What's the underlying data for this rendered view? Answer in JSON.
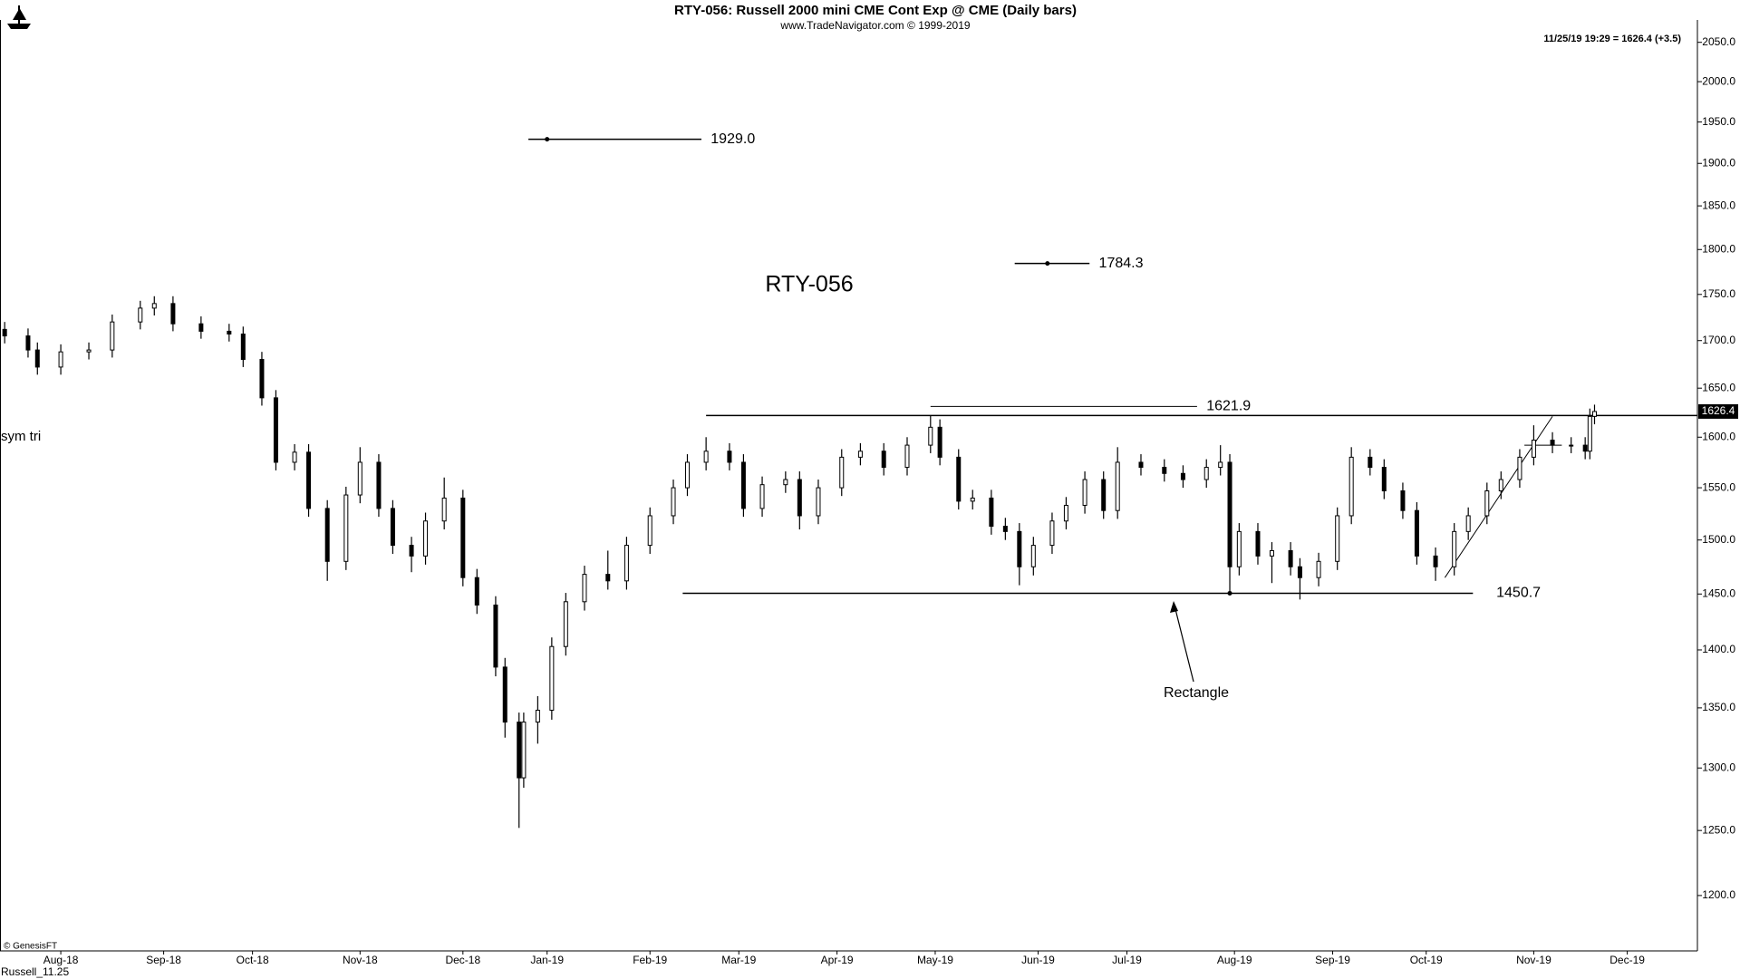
{
  "chart_data": {
    "type": "candlestick",
    "title": "RTY-056:  Russell 2000 mini CME Cont Exp @ CME  (Daily bars)",
    "subtitle": "www.TradeNavigator.com © 1999-2019",
    "header_note": "11/25/19 19:29 = 1626.4 (+3.5)",
    "chart_label": "RTY-056",
    "side_note": "sym tri",
    "pattern_label": "Rectangle",
    "copyright": "© GenesisFT",
    "file_label": "Russell_11.25",
    "last_price_label": "1626.4",
    "log_scale": true,
    "x": [
      0,
      5,
      7,
      12,
      18,
      23,
      29,
      32,
      36,
      42,
      48,
      51,
      55,
      58,
      62,
      65,
      69,
      73,
      76,
      80,
      83,
      87,
      90,
      94,
      98,
      101,
      105,
      107,
      110,
      111,
      114,
      117,
      120,
      124,
      129,
      133,
      138,
      143,
      146,
      150,
      155,
      158,
      162,
      167,
      170,
      174,
      179,
      183,
      188,
      193,
      198,
      200,
      204,
      207,
      211,
      214,
      217,
      220,
      224,
      227,
      231,
      235,
      238,
      243,
      248,
      252,
      257,
      260,
      262,
      264,
      268,
      271,
      275,
      277,
      281,
      285,
      288,
      292,
      295,
      299,
      302,
      306,
      310,
      313,
      317,
      320,
      324,
      327,
      331,
      335,
      338,
      339,
      340
    ],
    "open": [
      1712,
      1705,
      1690,
      1672,
      1688,
      1690,
      1720,
      1735,
      1740,
      1718,
      1710,
      1707,
      1680,
      1640,
      1575,
      1585,
      1530,
      1480,
      1543,
      1575,
      1530,
      1495,
      1485,
      1518,
      1540,
      1465,
      1440,
      1385,
      1338,
      1292,
      1338,
      1348,
      1403,
      1443,
      1468,
      1462,
      1495,
      1523,
      1550,
      1575,
      1586,
      1575,
      1530,
      1553,
      1558,
      1523,
      1550,
      1580,
      1586,
      1570,
      1592,
      1610,
      1580,
      1537,
      1540,
      1513,
      1508,
      1475,
      1495,
      1518,
      1533,
      1558,
      1528,
      1575,
      1570,
      1564,
      1558,
      1570,
      1575,
      1475,
      1508,
      1485,
      1490,
      1475,
      1465,
      1480,
      1523,
      1580,
      1570,
      1547,
      1528,
      1485,
      1475,
      1508,
      1523,
      1547,
      1558,
      1580,
      1597,
      1592,
      1592,
      1586,
      1621
    ],
    "high": [
      1720,
      1713,
      1698,
      1696,
      1698,
      1728,
      1743,
      1748,
      1748,
      1726,
      1718,
      1715,
      1688,
      1648,
      1593,
      1593,
      1538,
      1551,
      1590,
      1583,
      1538,
      1503,
      1526,
      1560,
      1548,
      1473,
      1448,
      1393,
      1346,
      1346,
      1360,
      1411,
      1451,
      1476,
      1490,
      1503,
      1531,
      1558,
      1583,
      1600,
      1594,
      1583,
      1561,
      1566,
      1566,
      1558,
      1588,
      1594,
      1594,
      1600,
      1622,
      1618,
      1588,
      1548,
      1548,
      1521,
      1516,
      1503,
      1526,
      1541,
      1566,
      1566,
      1590,
      1583,
      1578,
      1572,
      1578,
      1592,
      1583,
      1516,
      1516,
      1498,
      1498,
      1483,
      1488,
      1531,
      1590,
      1588,
      1578,
      1555,
      1536,
      1493,
      1516,
      1531,
      1555,
      1566,
      1588,
      1612,
      1605,
      1600,
      1600,
      1629,
      1633
    ],
    "low": [
      1697,
      1682,
      1664,
      1664,
      1680,
      1682,
      1712,
      1727,
      1710,
      1702,
      1699,
      1672,
      1632,
      1567,
      1567,
      1522,
      1462,
      1472,
      1535,
      1522,
      1487,
      1470,
      1477,
      1510,
      1457,
      1432,
      1377,
      1325,
      1252,
      1284,
      1320,
      1340,
      1395,
      1435,
      1454,
      1454,
      1487,
      1515,
      1542,
      1567,
      1567,
      1522,
      1522,
      1545,
      1510,
      1515,
      1542,
      1572,
      1562,
      1562,
      1584,
      1572,
      1529,
      1529,
      1505,
      1500,
      1458,
      1467,
      1487,
      1510,
      1525,
      1520,
      1520,
      1562,
      1556,
      1550,
      1550,
      1562,
      1452,
      1467,
      1477,
      1460,
      1467,
      1445,
      1457,
      1472,
      1515,
      1562,
      1539,
      1520,
      1477,
      1462,
      1467,
      1500,
      1515,
      1539,
      1550,
      1572,
      1584,
      1584,
      1578,
      1578,
      1613
    ],
    "close": [
      1705,
      1690,
      1672,
      1688,
      1690,
      1720,
      1735,
      1740,
      1718,
      1710,
      1707,
      1680,
      1640,
      1575,
      1585,
      1530,
      1480,
      1543,
      1575,
      1530,
      1495,
      1485,
      1518,
      1540,
      1465,
      1440,
      1385,
      1338,
      1292,
      1338,
      1348,
      1403,
      1443,
      1468,
      1462,
      1495,
      1523,
      1550,
      1575,
      1586,
      1575,
      1530,
      1553,
      1558,
      1523,
      1550,
      1580,
      1586,
      1570,
      1592,
      1610,
      1580,
      1537,
      1540,
      1513,
      1508,
      1475,
      1495,
      1518,
      1533,
      1558,
      1528,
      1575,
      1570,
      1564,
      1558,
      1570,
      1575,
      1475,
      1508,
      1485,
      1490,
      1475,
      1465,
      1480,
      1523,
      1580,
      1570,
      1547,
      1528,
      1485,
      1475,
      1508,
      1523,
      1547,
      1558,
      1580,
      1597,
      1592,
      1592,
      1586,
      1621,
      1626
    ],
    "xlim": [
      -1,
      362
    ],
    "xticks": [
      {
        "value": 12,
        "label": "Aug-18"
      },
      {
        "value": 34,
        "label": "Sep-18"
      },
      {
        "value": 53,
        "label": "Oct-18"
      },
      {
        "value": 76,
        "label": "Nov-18"
      },
      {
        "value": 98,
        "label": "Dec-18"
      },
      {
        "value": 116,
        "label": "Jan-19"
      },
      {
        "value": 138,
        "label": "Feb-19"
      },
      {
        "value": 157,
        "label": "Mar-19"
      },
      {
        "value": 178,
        "label": "Apr-19"
      },
      {
        "value": 199,
        "label": "May-19"
      },
      {
        "value": 221,
        "label": "Jun-19"
      },
      {
        "value": 240,
        "label": "Jul-19"
      },
      {
        "value": 263,
        "label": "Aug-19"
      },
      {
        "value": 284,
        "label": "Sep-19"
      },
      {
        "value": 304,
        "label": "Oct-19"
      },
      {
        "value": 327,
        "label": "Nov-19"
      },
      {
        "value": 347,
        "label": "Dec-19"
      }
    ],
    "ylim": [
      1159,
      2079
    ],
    "yticks": [
      {
        "value": 1200,
        "label": "1200.0"
      },
      {
        "value": 1250,
        "label": "1250.0"
      },
      {
        "value": 1300,
        "label": "1300.0"
      },
      {
        "value": 1350,
        "label": "1350.0"
      },
      {
        "value": 1400,
        "label": "1400.0"
      },
      {
        "value": 1450,
        "label": "1450.0"
      },
      {
        "value": 1500,
        "label": "1500.0"
      },
      {
        "value": 1550,
        "label": "1550.0"
      },
      {
        "value": 1600,
        "label": "1600.0"
      },
      {
        "value": 1650,
        "label": "1650.0"
      },
      {
        "value": 1700,
        "label": "1700.0"
      },
      {
        "value": 1750,
        "label": "1750.0"
      },
      {
        "value": 1800,
        "label": "1800.0"
      },
      {
        "value": 1850,
        "label": "1850.0"
      },
      {
        "value": 1900,
        "label": "1900.0"
      },
      {
        "value": 1950,
        "label": "1950.0"
      },
      {
        "value": 2000,
        "label": "2000.0"
      },
      {
        "value": 2050,
        "label": "2050.0"
      }
    ],
    "levels": [
      1929.0,
      1784.3,
      1621.9,
      1450.7
    ],
    "level_labels": [
      "1929.0",
      "1784.3",
      "1621.9",
      "1450.7"
    ],
    "color": "#000000"
  }
}
